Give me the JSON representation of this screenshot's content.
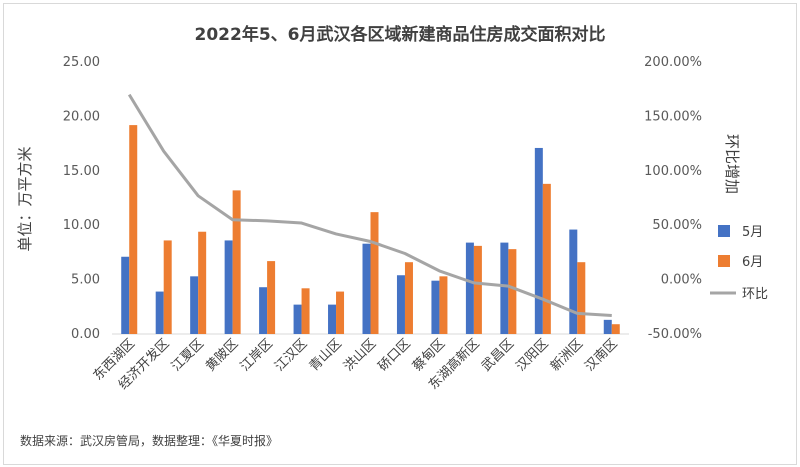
{
  "chart_data": {
    "type": "bar+line",
    "title": "2022年5、6月武汉各区域新建商品住房成交面积对比",
    "categories": [
      "东西湖区",
      "经济开发区",
      "江夏区",
      "黄陂区",
      "江岸区",
      "江汉区",
      "青山区",
      "洪山区",
      "硚口区",
      "蔡甸区",
      "东湖高新区",
      "武昌区",
      "汉阳区",
      "新洲区",
      "汉南区"
    ],
    "series": [
      {
        "name": "5月",
        "axis": "left",
        "kind": "bar",
        "color": "#4472C4",
        "values": [
          7.1,
          3.9,
          5.3,
          8.6,
          4.3,
          2.7,
          2.7,
          8.3,
          5.4,
          4.9,
          8.4,
          8.4,
          17.1,
          9.6,
          1.3
        ]
      },
      {
        "name": "6月",
        "axis": "left",
        "kind": "bar",
        "color": "#ED7D31",
        "values": [
          19.2,
          8.6,
          9.4,
          13.2,
          6.7,
          4.2,
          3.9,
          11.2,
          6.6,
          5.3,
          8.1,
          7.8,
          13.8,
          6.6,
          0.9
        ]
      },
      {
        "name": "环比",
        "axis": "right",
        "kind": "line",
        "color": "#A5A5A5",
        "values": [
          1.7,
          1.18,
          0.77,
          0.55,
          0.54,
          0.52,
          0.42,
          0.35,
          0.24,
          0.08,
          -0.03,
          -0.06,
          -0.18,
          -0.31,
          -0.33
        ]
      }
    ],
    "left_axis": {
      "label": "单位：万平方米",
      "min": 0,
      "max": 25,
      "step": 5,
      "ticks": [
        "0.00",
        "5.00",
        "10.00",
        "15.00",
        "20.00",
        "25.00"
      ]
    },
    "right_axis": {
      "label": "环比增加",
      "min": -0.5,
      "max": 2.0,
      "step": 0.5,
      "ticks": [
        "-50.00%",
        "0.00%",
        "50.00%",
        "100.00%",
        "150.00%",
        "200.00%"
      ]
    },
    "grid": false,
    "legend": "right"
  },
  "source_note": "数据来源：武汉房管局，数据整理：《华夏时报》"
}
